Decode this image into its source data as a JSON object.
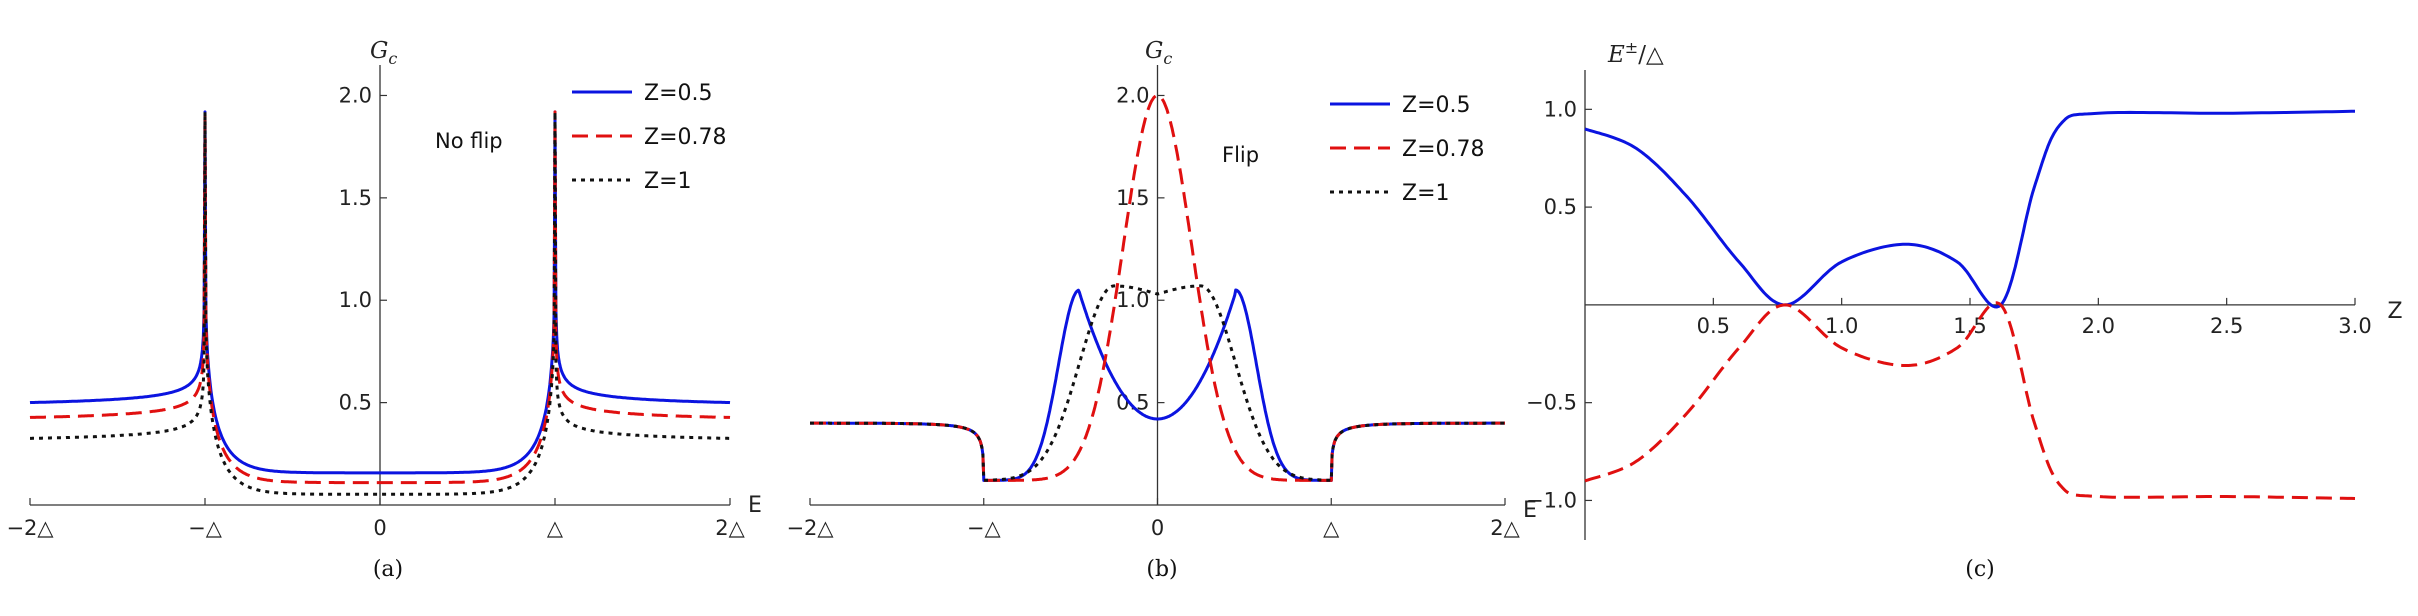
{
  "chart_data": [
    {
      "panel": "a",
      "type": "line",
      "caption": "(a)",
      "annotation": "No flip",
      "ylabel": "G",
      "ylabel_sub": "c",
      "xlabel": "E",
      "xlim": [
        -2,
        2
      ],
      "ylim": [
        0,
        2.1
      ],
      "xticks": [
        -2,
        -1,
        0,
        1,
        2
      ],
      "xtick_labels": [
        "−2△",
        "−△",
        "0",
        "△",
        "2△"
      ],
      "yticks": [
        0.5,
        1.0,
        1.5,
        2.0
      ],
      "ytick_labels": [
        "0.5",
        "1.0",
        "1.5",
        "2.0"
      ],
      "legend_position": "top-right",
      "series": [
        {
          "name": "Z=0.5",
          "color": "#0b14e0",
          "dash": "solid",
          "Z": 0.5
        },
        {
          "name": "Z=0.78",
          "color": "#e01010",
          "dash": "dashed",
          "Z": 0.78
        },
        {
          "name": "Z=1",
          "color": "#111111",
          "dash": "dotted",
          "Z": 1
        }
      ]
    },
    {
      "panel": "b",
      "type": "line",
      "caption": "(b)",
      "annotation": "Flip",
      "ylabel": "G",
      "ylabel_sub": "c",
      "xlabel": "E",
      "xlim": [
        -2,
        2
      ],
      "ylim": [
        0,
        2.1
      ],
      "xticks": [
        -2,
        -1,
        0,
        1,
        2
      ],
      "xtick_labels": [
        "−2△",
        "−△",
        "0",
        "△",
        "2△"
      ],
      "yticks": [
        0.5,
        1.0,
        1.5,
        2.0
      ],
      "ytick_labels": [
        "0.5",
        "1.0",
        "1.5",
        "2.0"
      ],
      "legend_position": "top-right",
      "series": [
        {
          "name": "Z=0.5",
          "color": "#0b14e0",
          "dash": "solid",
          "Z": 0.5
        },
        {
          "name": "Z=0.78",
          "color": "#e01010",
          "dash": "dashed",
          "Z": 0.78
        },
        {
          "name": "Z=1",
          "color": "#111111",
          "dash": "dotted",
          "Z": 1
        }
      ]
    },
    {
      "panel": "c",
      "type": "line",
      "caption": "(c)",
      "ylabel": "E",
      "ylabel_sup": "±",
      "ylabel_tail": "/△",
      "xlabel": "Z",
      "xlim": [
        0,
        3.0
      ],
      "ylim": [
        -1.1,
        1.15
      ],
      "xticks": [
        0.5,
        1.0,
        1.5,
        2.0,
        2.5,
        3.0
      ],
      "xtick_labels": [
        "0.5",
        "1.0",
        "1.5",
        "2.0",
        "2.5",
        "3.0"
      ],
      "yticks": [
        -1.0,
        -0.5,
        0.5,
        1.0
      ],
      "ytick_labels": [
        "−1.0",
        "−0.5",
        "0.5",
        "1.0"
      ],
      "series": [
        {
          "name": "E+",
          "color": "#0b14e0",
          "dash": "solid",
          "x": [
            0,
            0.2,
            0.4,
            0.6,
            0.78,
            1.0,
            1.25,
            1.45,
            1.62,
            1.75,
            1.85,
            2.0,
            2.5,
            3.0
          ],
          "y": [
            0.9,
            0.8,
            0.55,
            0.22,
            0.0,
            0.22,
            0.31,
            0.22,
            0.0,
            0.6,
            0.92,
            0.98,
            0.98,
            0.99
          ]
        },
        {
          "name": "E-",
          "color": "#e01010",
          "dash": "dashed",
          "x": [
            0,
            0.2,
            0.4,
            0.6,
            0.78,
            1.0,
            1.25,
            1.45,
            1.62,
            1.75,
            1.85,
            2.0,
            2.5,
            3.0
          ],
          "y": [
            -0.9,
            -0.8,
            -0.55,
            -0.22,
            0.0,
            -0.22,
            -0.31,
            -0.22,
            0.0,
            -0.6,
            -0.92,
            -0.98,
            -0.98,
            -0.99
          ]
        }
      ]
    }
  ]
}
